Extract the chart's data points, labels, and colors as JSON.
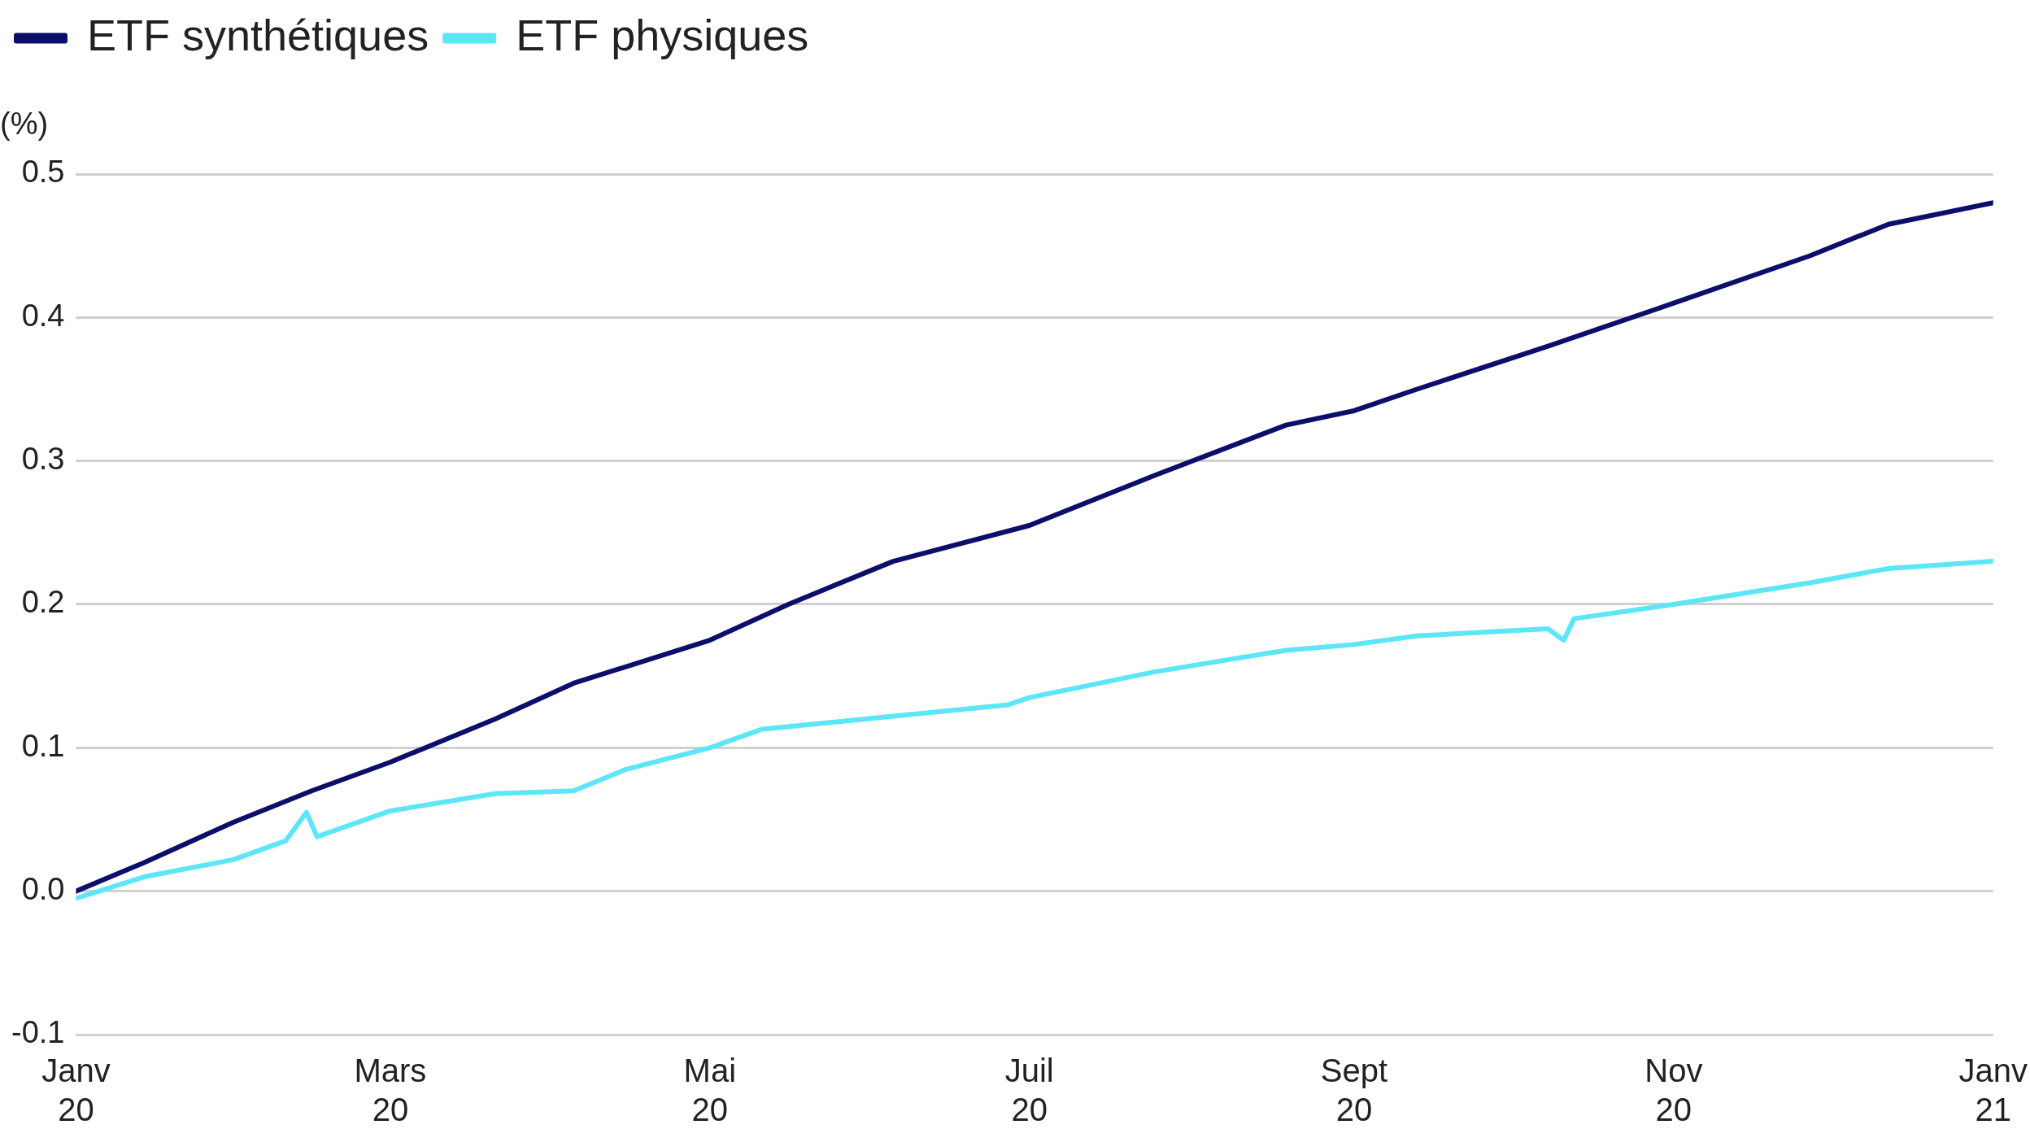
{
  "chart_data": {
    "type": "line",
    "ylabel": "(%)",
    "legend": "top left",
    "grid": "y",
    "line_style": "solid",
    "marker": "none",
    "xlim": [
      "2020-01-01",
      "2021-01-01"
    ],
    "xticks": [
      {
        "value": "2020-01-01",
        "label": "Janv\n20"
      },
      {
        "value": "2020-03-01",
        "label": "Mars\n20"
      },
      {
        "value": "2020-05-01",
        "label": "Mai\n20"
      },
      {
        "value": "2020-07-01",
        "label": "Juil\n20"
      },
      {
        "value": "2020-09-01",
        "label": "Sept\n20"
      },
      {
        "value": "2020-11-01",
        "label": "Nov\n20"
      },
      {
        "value": "2021-01-01",
        "label": "Janv\n21"
      }
    ],
    "ylim": [
      -0.1,
      0.5
    ],
    "yticks": [
      -0.1,
      {
        "value": 0,
        "label": "0.0"
      },
      0.1,
      0.2,
      0.3,
      0.4,
      0.5
    ],
    "series": [
      {
        "name": "ETF synthétiques",
        "color": "#0b0f6b",
        "x": [
          "2020-01-01",
          "2020-01-14",
          "2020-01-31",
          "2020-02-15",
          "2020-03-01",
          "2020-03-21",
          "2020-04-05",
          "2020-05-01",
          "2020-05-16",
          "2020-06-05",
          "2020-07-01",
          "2020-07-25",
          "2020-08-19",
          "2020-09-01",
          "2020-09-13",
          "2020-10-08",
          "2020-11-01",
          "2020-11-27",
          "2020-12-12",
          "2021-01-01"
        ],
        "values": [
          0,
          0.02,
          0.048,
          0.07,
          0.09,
          0.12,
          0.145,
          0.175,
          0.2,
          0.23,
          0.255,
          0.29,
          0.325,
          0.335,
          0.35,
          0.38,
          0.41,
          0.443,
          0.465,
          0.48
        ]
      },
      {
        "name": "ETF physiques",
        "color": "#5ce6f7",
        "x": [
          "2020-01-01",
          "2020-01-14",
          "2020-01-31",
          "2020-02-10",
          "2020-02-14",
          "2020-02-16",
          "2020-03-01",
          "2020-03-21",
          "2020-04-05",
          "2020-04-15",
          "2020-05-01",
          "2020-05-11",
          "2020-06-05",
          "2020-06-27",
          "2020-07-01",
          "2020-07-25",
          "2020-08-19",
          "2020-09-01",
          "2020-09-13",
          "2020-10-08",
          "2020-10-11",
          "2020-10-13",
          "2020-11-01",
          "2020-11-27",
          "2020-12-12",
          "2021-01-01"
        ],
        "values": [
          -0.005,
          0.01,
          0.022,
          0.035,
          0.055,
          0.038,
          0.056,
          0.068,
          0.07,
          0.085,
          0.1,
          0.113,
          0.122,
          0.13,
          0.135,
          0.153,
          0.168,
          0.172,
          0.178,
          0.183,
          0.175,
          0.19,
          0.2,
          0.215,
          0.225,
          0.23
        ]
      }
    ]
  }
}
